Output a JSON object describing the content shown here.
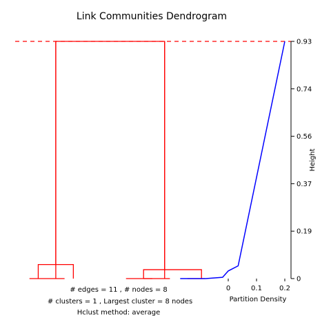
{
  "chart_data": {
    "type": "dendrogram",
    "title": "Link Communities Dendrogram",
    "ylabel": "Height",
    "density_xlabel": "Partition Density",
    "ylim": [
      0,
      0.93
    ],
    "y_ticks": [
      "0",
      "0.19",
      "0.37",
      "0.56",
      "0.74",
      "0.93"
    ],
    "y_tick_values": [
      0,
      0.186,
      0.372,
      0.558,
      0.744,
      0.93
    ],
    "cut_height": 0.93,
    "density_x_ticks": [
      "0",
      "0.1",
      "0.2"
    ],
    "density_x_tick_values": [
      0,
      0.1,
      0.2
    ],
    "density_xlim": [
      -0.17,
      0.2
    ],
    "dendrogram_color": "#ff0000",
    "density_color": "#0000ff",
    "merges": [
      {
        "left": 0.5,
        "right": 2.5,
        "height": 0
      },
      {
        "left": 6,
        "right": 7.5,
        "height": 0
      },
      {
        "left": 7,
        "right": 8.5,
        "height": 0
      },
      {
        "left": 9.5,
        "right": 10.5,
        "height": 0
      },
      {
        "left": 1,
        "right": 3,
        "height": 0.055
      },
      {
        "left": 7,
        "right": 10.3,
        "height": 0.035
      },
      {
        "left": 2,
        "right": 8.2,
        "height": 0.93
      }
    ],
    "leaf_count": 11,
    "density_curve": [
      {
        "density": -0.17,
        "height": 0
      },
      {
        "density": -0.08,
        "height": 0
      },
      {
        "density": -0.02,
        "height": 0.005
      },
      {
        "density": 0,
        "height": 0.03
      },
      {
        "density": 0.035,
        "height": 0.05
      },
      {
        "density": 0.2,
        "height": 0.93
      }
    ]
  },
  "stats": {
    "line1": "# edges =  11 ,    # nodes =  8",
    "line2": "# clusters =  1 ,   Largest cluster =  8  nodes",
    "line3": "Hclust method:  average"
  }
}
